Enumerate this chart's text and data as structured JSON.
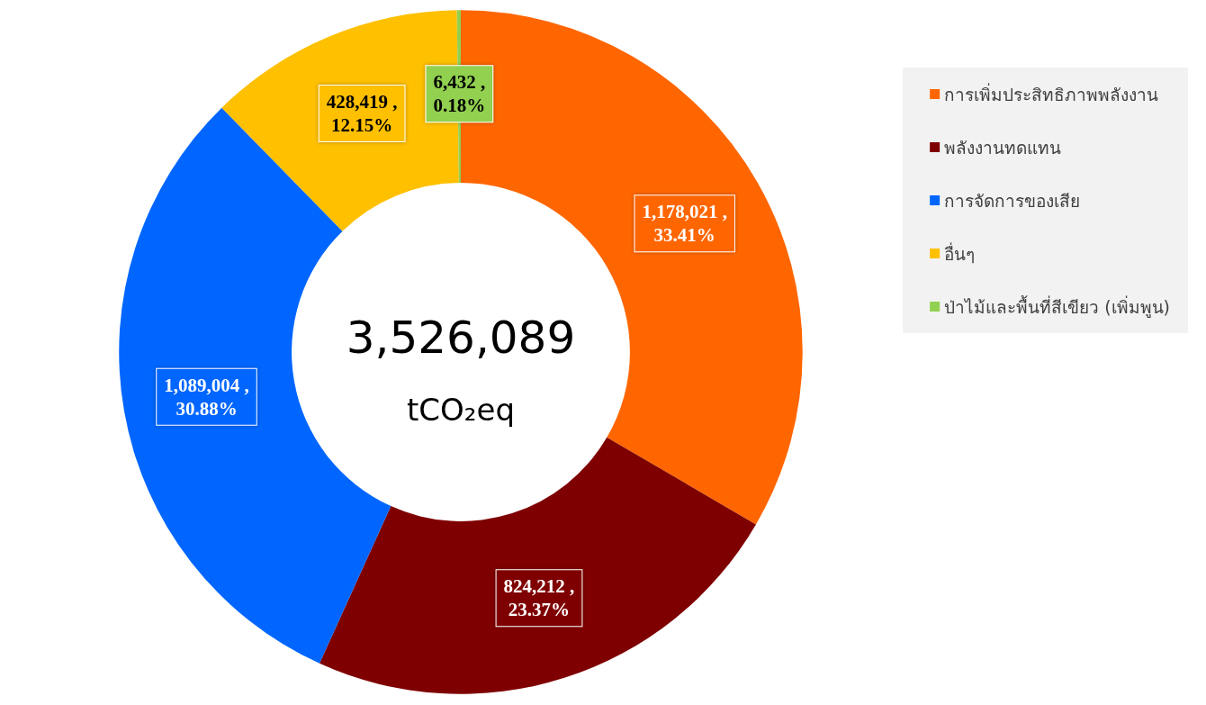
{
  "chart_data": {
    "type": "donut",
    "categories": [
      "การเพิ่มประสิทธิภาพพลังงาน",
      "พลังงานทดแทน",
      "การจัดการของเสีย",
      "อื่นๆ",
      "ป่าไม้และพื้นที่สีเขียว (เพิ่มพูน)"
    ],
    "values": [
      1178021,
      824212,
      1089004,
      428419,
      6432
    ],
    "colors": [
      "#ff6600",
      "#7f0000",
      "#0066ff",
      "#ffc000",
      "#92d050"
    ],
    "value_labels": [
      "1,178,021 ,\n33.41%",
      "824,212 ,\n23.37%",
      "1,089,004 ,\n30.88%",
      "428,419 ,\n12.15%",
      "6,432 ,\n0.18%"
    ],
    "annotations": [
      "3,526,089",
      "tCO₂eq"
    ],
    "legend": "right"
  }
}
